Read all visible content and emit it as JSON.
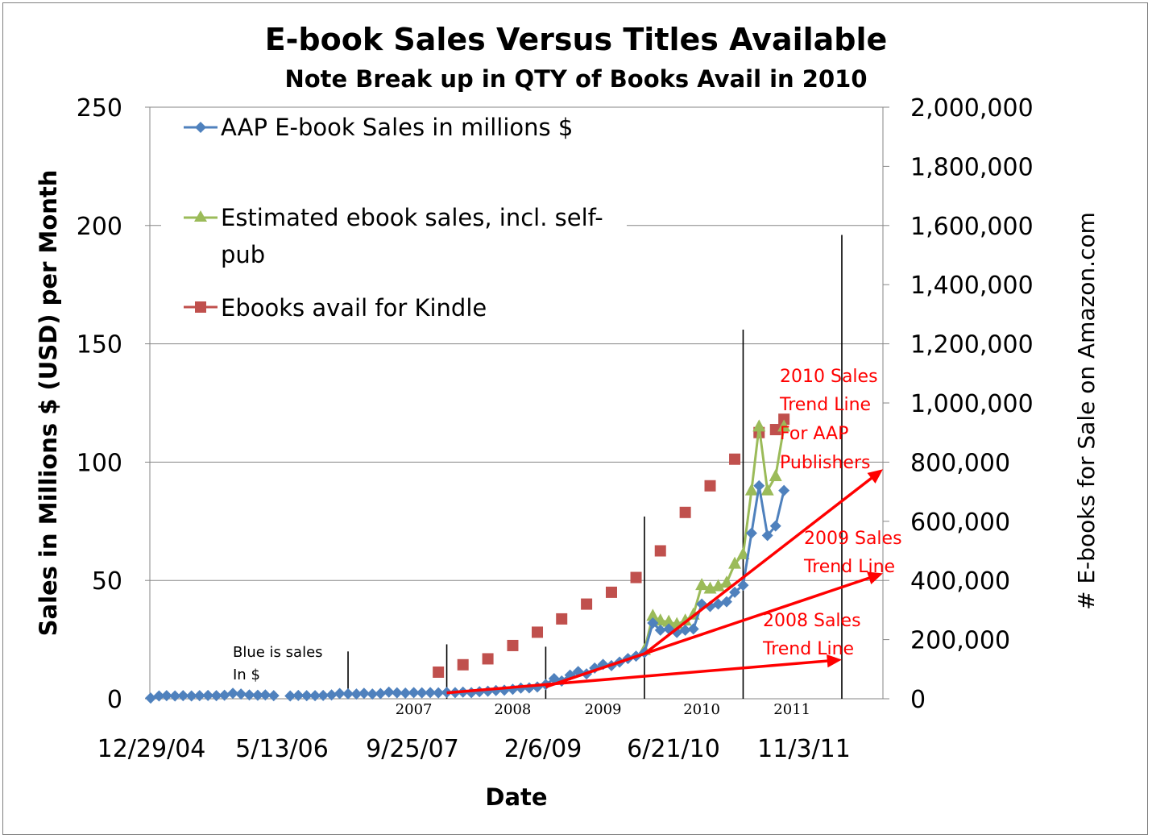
{
  "chart_data": {
    "type": "line",
    "title": "E-book Sales Versus Titles Available",
    "subtitle": "Note Break up in QTY of Books Avail in 2010",
    "xlabel": "Date",
    "ylabel": "Sales in Millions $ (USD) per Month",
    "y2label": "# E-books for Sale on Amazon.com",
    "x_tick_labels": [
      "12/29/04",
      "5/13/06",
      "9/25/07",
      "2/6/09",
      "6/21/10",
      "11/3/11"
    ],
    "x_range": [
      "2004-12-29",
      "2012-06-01"
    ],
    "y_ticks": [
      "0",
      "50",
      "100",
      "150",
      "200",
      "250"
    ],
    "ylim": [
      0,
      250
    ],
    "y2_ticks": [
      "0",
      "200,000",
      "400,000",
      "600,000",
      "800,000",
      "1,000,000",
      "1,200,000",
      "1,400,000",
      "1,600,000",
      "1,800,000",
      "2,000,000"
    ],
    "y2lim": [
      0,
      2000000
    ],
    "grid": "horizontal",
    "legend_position": "top-left",
    "year_labels": [
      {
        "text": "2007",
        "x": "2007-09-01"
      },
      {
        "text": "2008",
        "x": "2008-09-01"
      },
      {
        "text": "2009",
        "x": "2009-08-01"
      },
      {
        "text": "2010",
        "x": "2010-08-01"
      },
      {
        "text": "2011",
        "x": "2011-07-01"
      }
    ],
    "year_dividers": [
      {
        "x": "2007-01-01",
        "ytop": 20
      },
      {
        "x": "2008-01-01",
        "ytop": 23
      },
      {
        "x": "2009-01-01",
        "ytop": 22
      },
      {
        "x": "2010-01-01",
        "ytop": 77
      },
      {
        "x": "2011-01-01",
        "ytop": 156
      },
      {
        "x": "2012-01-01",
        "ytop": 196
      }
    ],
    "series": [
      {
        "name": "AAP E-book Sales in millions $",
        "axis": "left",
        "color": "#4f81bd",
        "marker": "diamond",
        "points": [
          [
            "2005-01-01",
            0.3
          ],
          [
            "2005-02-01",
            1.2
          ],
          [
            "2005-03-01",
            1.3
          ],
          [
            "2005-04-01",
            1.2
          ],
          [
            "2005-05-01",
            1.3
          ],
          [
            "2005-06-01",
            1.2
          ],
          [
            "2005-07-01",
            1.3
          ],
          [
            "2005-08-01",
            1.4
          ],
          [
            "2005-09-01",
            1.3
          ],
          [
            "2005-10-01",
            1.5
          ],
          [
            "2005-11-01",
            2.3
          ],
          [
            "2005-12-01",
            2.0
          ],
          [
            "2006-01-01",
            1.6
          ],
          [
            "2006-02-01",
            1.5
          ],
          [
            "2006-03-01",
            1.6
          ],
          [
            "2006-04-01",
            1.3
          ],
          [
            "2006-06-01",
            1.2
          ],
          [
            "2006-07-01",
            1.4
          ],
          [
            "2006-08-01",
            1.3
          ],
          [
            "2006-09-01",
            1.3
          ],
          [
            "2006-10-01",
            1.4
          ],
          [
            "2006-11-01",
            1.6
          ],
          [
            "2006-12-01",
            2.2
          ],
          [
            "2007-01-01",
            2.1
          ],
          [
            "2007-02-01",
            2.0
          ],
          [
            "2007-03-01",
            2.3
          ],
          [
            "2007-04-01",
            2.0
          ],
          [
            "2007-05-01",
            2.2
          ],
          [
            "2007-06-01",
            2.8
          ],
          [
            "2007-07-01",
            2.5
          ],
          [
            "2007-08-01",
            2.4
          ],
          [
            "2007-09-01",
            2.6
          ],
          [
            "2007-10-01",
            2.5
          ],
          [
            "2007-11-01",
            2.6
          ],
          [
            "2007-12-01",
            2.5
          ],
          [
            "2008-01-01",
            2.7
          ],
          [
            "2008-02-01",
            2.6
          ],
          [
            "2008-03-01",
            2.8
          ],
          [
            "2008-04-01",
            2.6
          ],
          [
            "2008-05-01",
            3.0
          ],
          [
            "2008-06-01",
            3.2
          ],
          [
            "2008-07-01",
            3.5
          ],
          [
            "2008-08-01",
            3.6
          ],
          [
            "2008-09-01",
            4.0
          ],
          [
            "2008-10-01",
            4.5
          ],
          [
            "2008-11-01",
            4.6
          ],
          [
            "2008-12-01",
            5.0
          ],
          [
            "2009-01-01",
            6.0
          ],
          [
            "2009-02-01",
            8.5
          ],
          [
            "2009-03-01",
            7.5
          ],
          [
            "2009-04-01",
            10.0
          ],
          [
            "2009-05-01",
            11.5
          ],
          [
            "2009-06-01",
            10.5
          ],
          [
            "2009-07-01",
            13.0
          ],
          [
            "2009-08-01",
            14.5
          ],
          [
            "2009-09-01",
            14.0
          ],
          [
            "2009-10-01",
            15.5
          ],
          [
            "2009-11-01",
            17.0
          ],
          [
            "2009-12-01",
            18.0
          ],
          [
            "2010-01-01",
            19.5
          ],
          [
            "2010-02-01",
            32.0
          ],
          [
            "2010-03-01",
            29.0
          ],
          [
            "2010-04-01",
            29.5
          ],
          [
            "2010-05-01",
            28.0
          ],
          [
            "2010-06-01",
            29.0
          ],
          [
            "2010-07-01",
            29.5
          ],
          [
            "2010-08-01",
            40.0
          ],
          [
            "2010-09-01",
            39.0
          ],
          [
            "2010-10-01",
            40.0
          ],
          [
            "2010-11-01",
            41.0
          ],
          [
            "2010-12-01",
            45.0
          ],
          [
            "2011-01-01",
            48.0
          ],
          [
            "2011-02-01",
            70.0
          ],
          [
            "2011-03-01",
            90.0
          ],
          [
            "2011-04-01",
            69.0
          ],
          [
            "2011-05-01",
            73.0
          ],
          [
            "2011-06-01",
            88.0
          ]
        ]
      },
      {
        "name": "Estimated ebook sales, incl. self-pub",
        "axis": "left",
        "color": "#9bbb59",
        "marker": "triangle",
        "points": [
          [
            "2010-01-01",
            20.5
          ],
          [
            "2010-02-01",
            35.0
          ],
          [
            "2010-03-01",
            33.0
          ],
          [
            "2010-04-01",
            32.5
          ],
          [
            "2010-05-01",
            31.5
          ],
          [
            "2010-06-01",
            33.0
          ],
          [
            "2010-07-01",
            35.5
          ],
          [
            "2010-08-01",
            48.0
          ],
          [
            "2010-09-01",
            46.5
          ],
          [
            "2010-10-01",
            47.5
          ],
          [
            "2010-11-01",
            49.0
          ],
          [
            "2010-12-01",
            57.0
          ],
          [
            "2011-01-01",
            61.0
          ],
          [
            "2011-02-01",
            88.0
          ],
          [
            "2011-03-01",
            115.0
          ],
          [
            "2011-04-01",
            88.0
          ],
          [
            "2011-05-01",
            94.0
          ],
          [
            "2011-06-01",
            115.0
          ]
        ]
      },
      {
        "name": "Ebooks avail for Kindle",
        "axis": "right",
        "color": "#c0504d",
        "marker": "square",
        "points": [
          [
            "2007-12-01",
            90000
          ],
          [
            "2008-03-01",
            115000
          ],
          [
            "2008-06-01",
            135000
          ],
          [
            "2008-09-01",
            180000
          ],
          [
            "2008-12-01",
            225000
          ],
          [
            "2009-03-01",
            270000
          ],
          [
            "2009-06-01",
            320000
          ],
          [
            "2009-09-01",
            360000
          ],
          [
            "2009-12-01",
            410000
          ],
          [
            "2010-03-01",
            500000
          ],
          [
            "2010-06-01",
            630000
          ],
          [
            "2010-09-01",
            720000
          ],
          [
            "2010-12-01",
            810000
          ],
          [
            "2011-03-01",
            900000
          ],
          [
            "2011-05-01",
            910000
          ],
          [
            "2011-06-01",
            945000
          ]
        ]
      }
    ],
    "trend_lines": [
      {
        "label": "2008 Sales Trend Line",
        "from": [
          "2008-01-01",
          2.5
        ],
        "to": [
          "2012-01-01",
          16.5
        ]
      },
      {
        "label": "2009 Sales Trend Line",
        "from": [
          "2009-01-01",
          5.0
        ],
        "to": [
          "2012-06-01",
          53.0
        ]
      },
      {
        "label": "2010 Sales Trend Line For AAP Publishers",
        "from": [
          "2010-01-01",
          19.0
        ],
        "to": [
          "2012-06-01",
          97.0
        ]
      }
    ],
    "annotations": {
      "note_line1": "Blue is sales",
      "note_line2": "In $",
      "trend2010_lines": [
        "2010 Sales",
        "Trend Line",
        "For AAP",
        "Publishers"
      ],
      "trend2009_lines": [
        "2009 Sales",
        "Trend Line"
      ],
      "trend2008_lines": [
        "2008 Sales",
        "Trend Line"
      ]
    },
    "legend": {
      "aap": "AAP E-book Sales in millions $",
      "est_line1": "Estimated ebook sales, incl. self-",
      "est_line2": "pub",
      "kindle": "Ebooks avail for Kindle"
    }
  }
}
